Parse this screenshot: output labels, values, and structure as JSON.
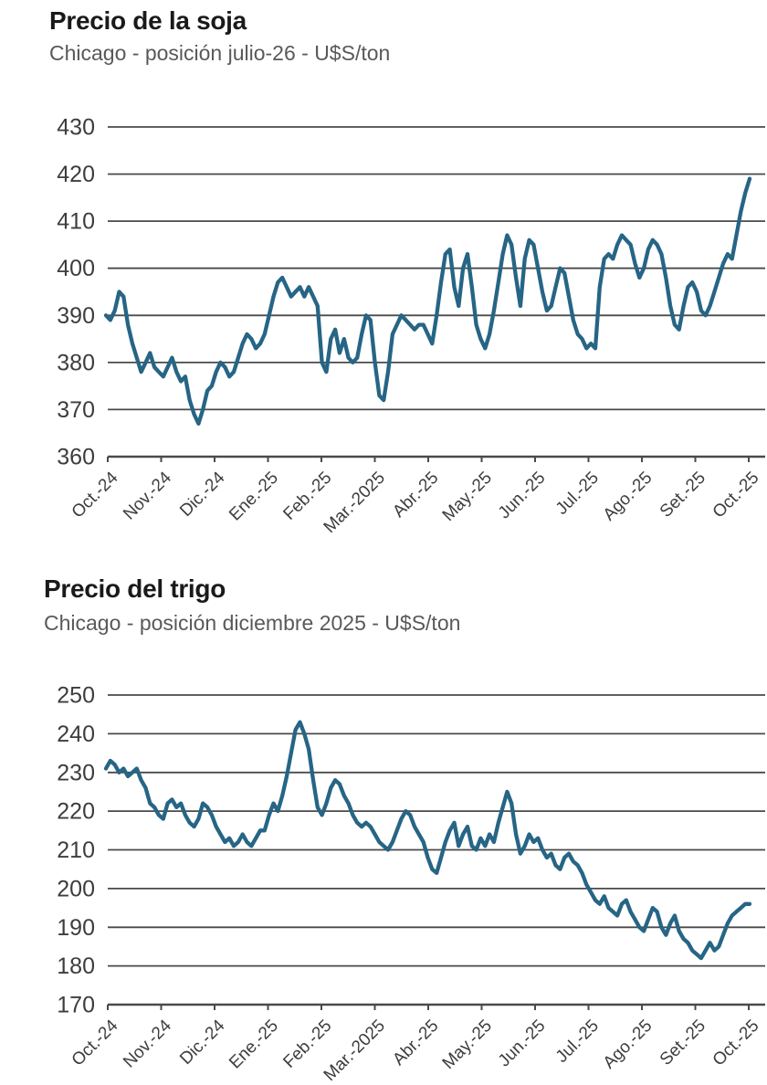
{
  "chart_data": [
    {
      "type": "line",
      "title": "Precio de la soja",
      "subtitle": "Chicago - posición julio-26 - U$S/ton",
      "unit": "U$S/ton",
      "x_tick_labels": [
        "Oct.-24",
        "Nov.-24",
        "Dic.-24",
        "Ene.-25",
        "Feb.-25",
        "Mar.-2025",
        "Abr.-25",
        "May.-25",
        "Jun.-25",
        "Jul.-25",
        "Ago.-25",
        "Set.-25",
        "Oct.-25"
      ],
      "y_ticks": [
        430,
        420,
        410,
        400,
        390,
        380,
        370,
        360
      ],
      "ylim": [
        360,
        430
      ],
      "grid": "horizontal",
      "legend": "none",
      "line_color": "#266585",
      "series": [
        {
          "name": "Precio de la soja - julio-26",
          "values": [
            390,
            389,
            391,
            395,
            394,
            388,
            384,
            381,
            378,
            380,
            382,
            379,
            378,
            377,
            379,
            381,
            378,
            376,
            377,
            372,
            369,
            367,
            370,
            374,
            375,
            378,
            380,
            379,
            377,
            378,
            381,
            384,
            386,
            385,
            383,
            384,
            386,
            390,
            394,
            397,
            398,
            396,
            394,
            395,
            396,
            394,
            396,
            394,
            392,
            380,
            378,
            385,
            387,
            382,
            385,
            381,
            380,
            381,
            386,
            390,
            389,
            380,
            373,
            372,
            378,
            386,
            388,
            390,
            389,
            388,
            387,
            388,
            388,
            386,
            384,
            390,
            397,
            403,
            404,
            396,
            392,
            400,
            403,
            396,
            388,
            385,
            383,
            386,
            391,
            397,
            403,
            407,
            405,
            398,
            392,
            402,
            406,
            405,
            400,
            395,
            391,
            392,
            396,
            400,
            399,
            394,
            389,
            386,
            385,
            383,
            384,
            383,
            396,
            402,
            403,
            402,
            405,
            407,
            406,
            405,
            401,
            398,
            400,
            404,
            406,
            405,
            403,
            398,
            392,
            388,
            387,
            392,
            396,
            397,
            395,
            391,
            390,
            392,
            395,
            398,
            401,
            403,
            402,
            407,
            412,
            416,
            419
          ]
        }
      ]
    },
    {
      "type": "line",
      "title": "Precio del trigo",
      "subtitle": "Chicago - posición diciembre 2025 - U$S/ton",
      "unit": "U$S/ton",
      "x_tick_labels": [
        "Oct.-24",
        "Nov.-24",
        "Dic.-24",
        "Ene.-25",
        "Feb.-25",
        "Mar.-2025",
        "Abr.-25",
        "May.-25",
        "Jun.-25",
        "Jul.-25",
        "Ago.-25",
        "Set.-25",
        "Oct.-25"
      ],
      "y_ticks": [
        250,
        240,
        230,
        220,
        210,
        200,
        190,
        180,
        170
      ],
      "ylim": [
        170,
        250
      ],
      "grid": "horizontal",
      "legend": "none",
      "line_color": "#266585",
      "series": [
        {
          "name": "Precio del trigo - diciembre 2025",
          "values": [
            231,
            233,
            232,
            230,
            231,
            229,
            230,
            231,
            228,
            226,
            222,
            221,
            219,
            218,
            222,
            223,
            221,
            222,
            219,
            217,
            216,
            218,
            222,
            221,
            219,
            216,
            214,
            212,
            213,
            211,
            212,
            214,
            212,
            211,
            213,
            215,
            215,
            219,
            222,
            220,
            224,
            229,
            235,
            241,
            243,
            240,
            236,
            228,
            221,
            219,
            222,
            226,
            228,
            227,
            224,
            222,
            219,
            217,
            216,
            217,
            216,
            214,
            212,
            211,
            210,
            212,
            215,
            218,
            220,
            219,
            216,
            214,
            212,
            208,
            205,
            204,
            208,
            212,
            215,
            217,
            211,
            214,
            216,
            211,
            210,
            213,
            211,
            214,
            212,
            217,
            221,
            225,
            222,
            214,
            209,
            211,
            214,
            212,
            213,
            210,
            208,
            209,
            206,
            205,
            208,
            209,
            207,
            206,
            204,
            201,
            199,
            197,
            196,
            198,
            195,
            194,
            193,
            196,
            197,
            194,
            192,
            190,
            189,
            192,
            195,
            194,
            190,
            188,
            191,
            193,
            189,
            187,
            186,
            184,
            183,
            182,
            184,
            186,
            184,
            185,
            188,
            191,
            193,
            194,
            195,
            196,
            196
          ]
        }
      ]
    }
  ],
  "style": {
    "grid_color": "#4a4a4a",
    "axis_color": "#4a4a4a",
    "title_color": "#1a1a1a",
    "subtitle_color": "#595959",
    "tick_label_color": "#3d3d3d",
    "background": "#ffffff"
  }
}
